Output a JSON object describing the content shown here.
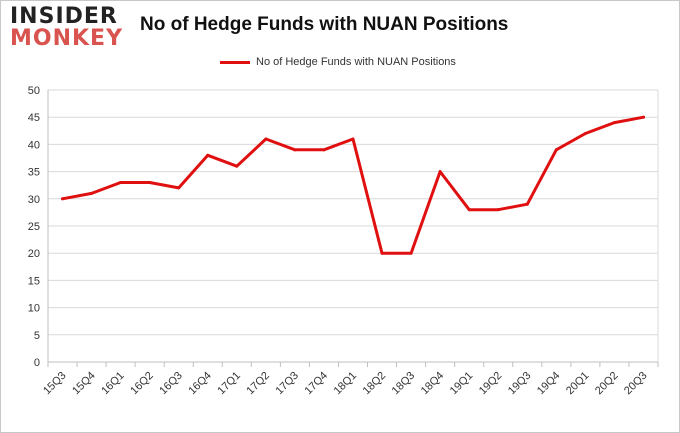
{
  "brand": {
    "line1": "INSIDER",
    "line2": "MONKEY"
  },
  "chart_data": {
    "type": "line",
    "title": "No of Hedge Funds with NUAN Positions",
    "xlabel": "",
    "ylabel": "",
    "categories": [
      "15Q3",
      "15Q4",
      "16Q1",
      "16Q2",
      "16Q3",
      "16Q4",
      "17Q1",
      "17Q2",
      "17Q3",
      "17Q4",
      "18Q1",
      "18Q2",
      "18Q3",
      "18Q4",
      "19Q1",
      "19Q2",
      "19Q3",
      "19Q4",
      "20Q1",
      "20Q2",
      "20Q3"
    ],
    "series": [
      {
        "name": "No of Hedge Funds with NUAN Positions",
        "color": "#e01010",
        "values": [
          30,
          31,
          33,
          33,
          32,
          38,
          36,
          41,
          39,
          39,
          41,
          20,
          20,
          35,
          28,
          28,
          29,
          39,
          42,
          44,
          45
        ]
      }
    ],
    "ylim": [
      0,
      50
    ],
    "yticks": [
      0,
      5,
      10,
      15,
      20,
      25,
      30,
      35,
      40,
      45,
      50
    ],
    "grid": true,
    "legend_position": "top"
  }
}
